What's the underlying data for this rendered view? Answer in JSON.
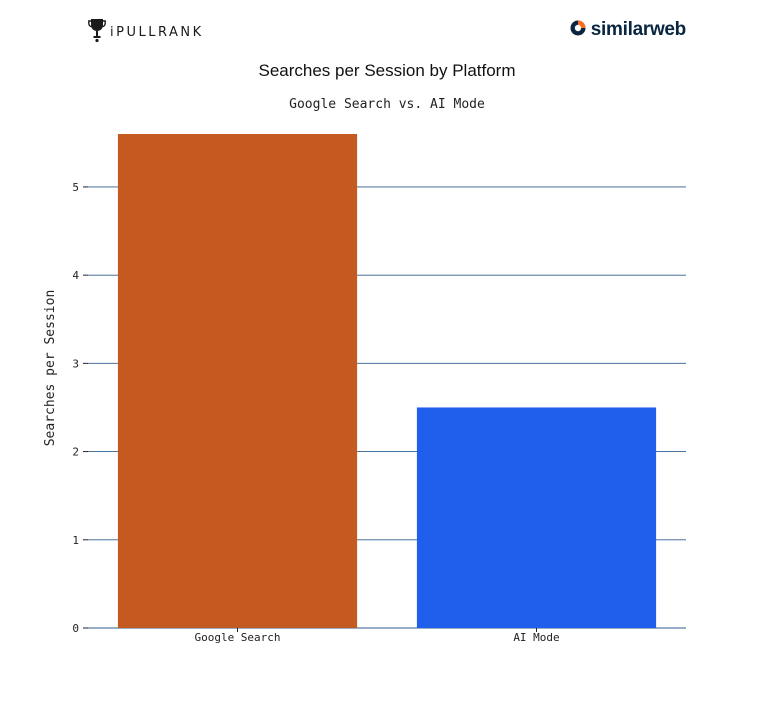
{
  "logos": {
    "left": {
      "icon": "trophy-icon",
      "text": "iPULLRANK"
    },
    "right": {
      "icon": "similarweb-icon",
      "text": "similarweb",
      "icon_color": "#ff6d1f",
      "text_color": "#092540"
    }
  },
  "chart_data": {
    "type": "bar",
    "title": "Searches per Session by Platform",
    "subtitle": "Google Search vs. AI Mode",
    "categories": [
      "Google Search",
      "AI Mode"
    ],
    "values": [
      5.6,
      2.5
    ],
    "colors": [
      "#c55a20",
      "#1f5fec"
    ],
    "ylabel": "Searches per Session",
    "xlabel": "",
    "ylim": [
      0,
      5.6
    ],
    "yticks": [
      0,
      1,
      2,
      3,
      4,
      5
    ],
    "grid": true,
    "grid_color": "#2e5f8f",
    "legend": "none"
  }
}
